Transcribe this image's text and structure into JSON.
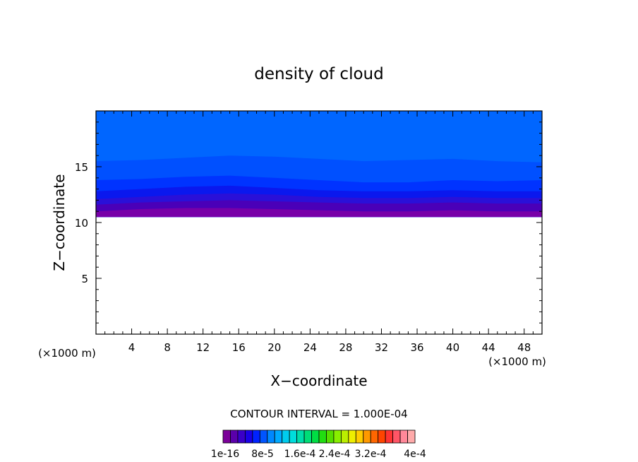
{
  "chart_data": {
    "type": "heatmap",
    "title": "density of cloud",
    "xlabel": "X−coordinate",
    "ylabel": "Z−coordinate",
    "x_unit_left": "(×1000 m)",
    "x_unit_right": "(×1000 m)",
    "xlim": [
      0,
      50
    ],
    "ylim": [
      0,
      20
    ],
    "x_ticks": [
      4,
      8,
      12,
      16,
      20,
      24,
      28,
      32,
      36,
      40,
      44,
      48
    ],
    "y_ticks": [
      5,
      10,
      15
    ],
    "contour_interval_text": "CONTOUR INTERVAL = 1.000E-04",
    "colorbar_labels": [
      "1e-16",
      "8e-5",
      "1.6e-4",
      "2.4e-4",
      "3.2e-4",
      "4e-4"
    ],
    "colorbar_colors": [
      "#7b0099",
      "#5a00aa",
      "#3a00c8",
      "#1a00e6",
      "#0022ff",
      "#0055ff",
      "#0088ff",
      "#00aaff",
      "#00ccee",
      "#00dddd",
      "#00ddaa",
      "#00dd77",
      "#00dd44",
      "#22dd11",
      "#55dd00",
      "#88ee00",
      "#bbee00",
      "#eeee00",
      "#ffcc00",
      "#ff9900",
      "#ff6600",
      "#ff4400",
      "#ff3333",
      "#ff5566",
      "#ff8899",
      "#ffaaaa"
    ],
    "contour_bands": [
      {
        "color": "#7800a8",
        "top_z": [
          11.0,
          11.2,
          11.3,
          11.3,
          11.2,
          11.1,
          11.0,
          11.0,
          11.1,
          11.0,
          11.0
        ]
      },
      {
        "color": "#4a00b8",
        "top_z": [
          11.6,
          11.8,
          11.9,
          12.0,
          11.9,
          11.8,
          11.7,
          11.7,
          11.8,
          11.7,
          11.7
        ]
      },
      {
        "color": "#2a10d8",
        "top_z": [
          12.1,
          12.3,
          12.5,
          12.6,
          12.5,
          12.3,
          12.2,
          12.2,
          12.3,
          12.2,
          12.2
        ]
      },
      {
        "color": "#0a18ee",
        "top_z": [
          12.8,
          13.0,
          13.2,
          13.3,
          13.1,
          12.9,
          12.8,
          12.8,
          12.9,
          12.8,
          12.8
        ]
      },
      {
        "color": "#0033ff",
        "top_z": [
          13.8,
          13.9,
          14.1,
          14.2,
          14.0,
          13.8,
          13.6,
          13.6,
          13.8,
          13.7,
          13.8
        ]
      },
      {
        "color": "#0050ff",
        "top_z": [
          15.5,
          15.6,
          15.8,
          16.0,
          15.9,
          15.7,
          15.5,
          15.6,
          15.7,
          15.5,
          15.4
        ]
      },
      {
        "color": "#0066ff",
        "top_z": [
          20,
          20,
          20,
          20,
          20,
          20,
          20,
          20,
          20,
          20,
          20
        ]
      }
    ],
    "cloud_base_z": 10.5
  }
}
